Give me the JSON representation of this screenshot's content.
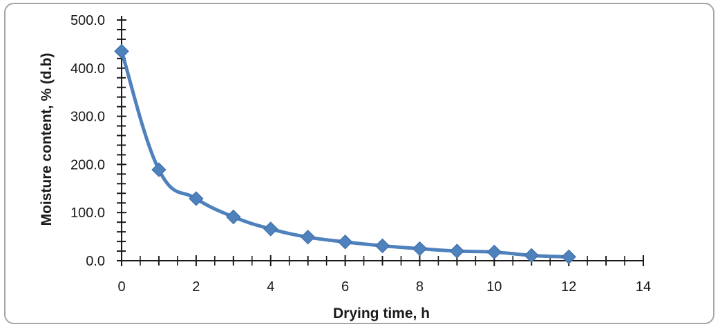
{
  "chart_data": {
    "type": "line",
    "title": "",
    "xlabel": "Drying time, h",
    "ylabel": "Moisture  content, % (d.b)",
    "xlim": [
      0,
      14
    ],
    "ylim": [
      0,
      500
    ],
    "x_ticks": [
      "0",
      "2",
      "4",
      "6",
      "8",
      "10",
      "12",
      "14"
    ],
    "y_ticks": [
      "0.0",
      "100.0",
      "200.0",
      "300.0",
      "400.0",
      "500.0"
    ],
    "grid": false,
    "legend": "none",
    "smooth": true,
    "marker": "diamond",
    "color": "#4f81bd",
    "series": [
      {
        "x": [
          0,
          1,
          2,
          3,
          4,
          5,
          6,
          7,
          8,
          9,
          10,
          11,
          12
        ],
        "y": [
          435,
          189,
          129,
          91,
          66,
          49,
          39,
          31,
          25,
          20,
          18,
          11,
          8
        ]
      }
    ]
  }
}
